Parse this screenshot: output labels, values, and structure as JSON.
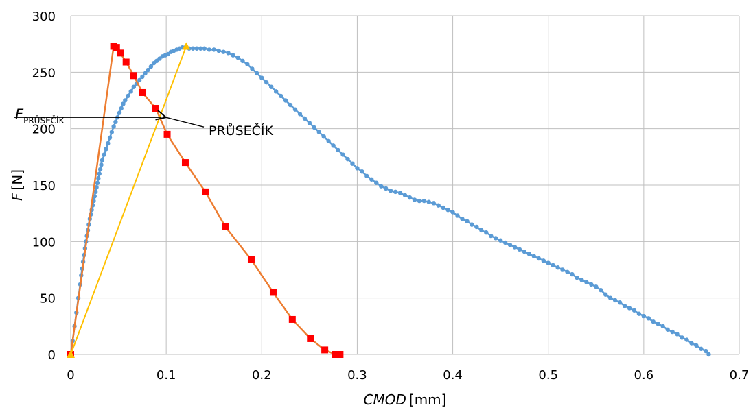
{
  "chart_data": {
    "type": "line",
    "xlabel": {
      "var": "CMOD",
      "unit": "[mm]"
    },
    "ylabel": {
      "var": "F",
      "unit": "[N]"
    },
    "xlim": [
      0,
      0.7
    ],
    "ylim": [
      0,
      300
    ],
    "xticks": [
      0,
      0.1,
      0.2,
      0.3,
      0.4,
      0.5,
      0.6,
      0.7
    ],
    "xtick_labels": [
      "0",
      "0.1",
      "0.2",
      "0.3",
      "0.4",
      "0.5",
      "0.6",
      "0.7"
    ],
    "yticks": [
      0,
      50,
      100,
      150,
      200,
      250,
      300
    ],
    "ytick_labels": [
      "0",
      "50",
      "100",
      "150",
      "200",
      "250",
      "300"
    ],
    "grid": true,
    "colors": {
      "blue": "#5B9BD5",
      "orange": "#ED7D31",
      "red": "#FF0000",
      "yellow": "#FFC000",
      "grid": "#BFBFBF"
    },
    "series": [
      {
        "marker": "circle",
        "color": "#5B9BD5",
        "points": [
          [
            0,
            0
          ],
          [
            0.002,
            12
          ],
          [
            0.004,
            25
          ],
          [
            0.006,
            37
          ],
          [
            0.008,
            50
          ],
          [
            0.01,
            62
          ],
          [
            0.011,
            70
          ],
          [
            0.012,
            76
          ],
          [
            0.013,
            82
          ],
          [
            0.014,
            88
          ],
          [
            0.015,
            94
          ],
          [
            0.016,
            100
          ],
          [
            0.017,
            105
          ],
          [
            0.018,
            110
          ],
          [
            0.019,
            115
          ],
          [
            0.02,
            120
          ],
          [
            0.021,
            124
          ],
          [
            0.022,
            128
          ],
          [
            0.023,
            132
          ],
          [
            0.024,
            136
          ],
          [
            0.025,
            140
          ],
          [
            0.026,
            144
          ],
          [
            0.027,
            148
          ],
          [
            0.028,
            152
          ],
          [
            0.029,
            156
          ],
          [
            0.03,
            160
          ],
          [
            0.031,
            164
          ],
          [
            0.032,
            168
          ],
          [
            0.033,
            172
          ],
          [
            0.035,
            177
          ],
          [
            0.037,
            182
          ],
          [
            0.039,
            187
          ],
          [
            0.041,
            192
          ],
          [
            0.043,
            197
          ],
          [
            0.045,
            202
          ],
          [
            0.047,
            206
          ],
          [
            0.049,
            210
          ],
          [
            0.051,
            214
          ],
          [
            0.053,
            218
          ],
          [
            0.055,
            222
          ],
          [
            0.057,
            225
          ],
          [
            0.06,
            229
          ],
          [
            0.063,
            233
          ],
          [
            0.066,
            237
          ],
          [
            0.069,
            240
          ],
          [
            0.072,
            243
          ],
          [
            0.075,
            246
          ],
          [
            0.078,
            249
          ],
          [
            0.081,
            252
          ],
          [
            0.084,
            255
          ],
          [
            0.087,
            258
          ],
          [
            0.09,
            260
          ],
          [
            0.093,
            262
          ],
          [
            0.096,
            264
          ],
          [
            0.099,
            265
          ],
          [
            0.102,
            266
          ],
          [
            0.105,
            268
          ],
          [
            0.108,
            269
          ],
          [
            0.111,
            270
          ],
          [
            0.114,
            271
          ],
          [
            0.117,
            272
          ],
          [
            0.12,
            272
          ],
          [
            0.124,
            271
          ],
          [
            0.128,
            271
          ],
          [
            0.132,
            271
          ],
          [
            0.136,
            271
          ],
          [
            0.14,
            271
          ],
          [
            0.145,
            270
          ],
          [
            0.15,
            270
          ],
          [
            0.155,
            269
          ],
          [
            0.16,
            268
          ],
          [
            0.165,
            267
          ],
          [
            0.17,
            265
          ],
          [
            0.175,
            263
          ],
          [
            0.18,
            260
          ],
          [
            0.185,
            257
          ],
          [
            0.19,
            253
          ],
          [
            0.195,
            249
          ],
          [
            0.2,
            245
          ],
          [
            0.205,
            241
          ],
          [
            0.21,
            237
          ],
          [
            0.215,
            233
          ],
          [
            0.22,
            229
          ],
          [
            0.225,
            225
          ],
          [
            0.23,
            221
          ],
          [
            0.235,
            217
          ],
          [
            0.24,
            213
          ],
          [
            0.245,
            209
          ],
          [
            0.25,
            205
          ],
          [
            0.255,
            201
          ],
          [
            0.26,
            197
          ],
          [
            0.265,
            193
          ],
          [
            0.27,
            189
          ],
          [
            0.275,
            185
          ],
          [
            0.28,
            181
          ],
          [
            0.285,
            177
          ],
          [
            0.29,
            173
          ],
          [
            0.295,
            169
          ],
          [
            0.3,
            165
          ],
          [
            0.305,
            162
          ],
          [
            0.31,
            158
          ],
          [
            0.315,
            155
          ],
          [
            0.32,
            152
          ],
          [
            0.325,
            149
          ],
          [
            0.33,
            147
          ],
          [
            0.335,
            145
          ],
          [
            0.34,
            144
          ],
          [
            0.345,
            143
          ],
          [
            0.35,
            141
          ],
          [
            0.355,
            139
          ],
          [
            0.36,
            137
          ],
          [
            0.365,
            136
          ],
          [
            0.37,
            136
          ],
          [
            0.375,
            135
          ],
          [
            0.38,
            134
          ],
          [
            0.385,
            132
          ],
          [
            0.39,
            130
          ],
          [
            0.395,
            128
          ],
          [
            0.4,
            126
          ],
          [
            0.405,
            123
          ],
          [
            0.41,
            120
          ],
          [
            0.415,
            118
          ],
          [
            0.42,
            115
          ],
          [
            0.425,
            113
          ],
          [
            0.43,
            110
          ],
          [
            0.435,
            108
          ],
          [
            0.44,
            105
          ],
          [
            0.445,
            103
          ],
          [
            0.45,
            101
          ],
          [
            0.455,
            99
          ],
          [
            0.46,
            97
          ],
          [
            0.465,
            95
          ],
          [
            0.47,
            93
          ],
          [
            0.475,
            91
          ],
          [
            0.48,
            89
          ],
          [
            0.485,
            87
          ],
          [
            0.49,
            85
          ],
          [
            0.495,
            83
          ],
          [
            0.5,
            81
          ],
          [
            0.505,
            79
          ],
          [
            0.51,
            77
          ],
          [
            0.515,
            75
          ],
          [
            0.52,
            73
          ],
          [
            0.525,
            71
          ],
          [
            0.53,
            68
          ],
          [
            0.535,
            66
          ],
          [
            0.54,
            64
          ],
          [
            0.545,
            62
          ],
          [
            0.55,
            60
          ],
          [
            0.555,
            57
          ],
          [
            0.56,
            53
          ],
          [
            0.565,
            50
          ],
          [
            0.57,
            48
          ],
          [
            0.575,
            46
          ],
          [
            0.58,
            43
          ],
          [
            0.585,
            41
          ],
          [
            0.59,
            39
          ],
          [
            0.595,
            36
          ],
          [
            0.6,
            34
          ],
          [
            0.605,
            32
          ],
          [
            0.61,
            29
          ],
          [
            0.615,
            27
          ],
          [
            0.62,
            25
          ],
          [
            0.625,
            22
          ],
          [
            0.63,
            20
          ],
          [
            0.635,
            18
          ],
          [
            0.64,
            15
          ],
          [
            0.645,
            13
          ],
          [
            0.65,
            10
          ],
          [
            0.655,
            8
          ],
          [
            0.66,
            5
          ],
          [
            0.665,
            3
          ],
          [
            0.668,
            0
          ]
        ]
      },
      {
        "marker": "square",
        "color": "#ED7D31",
        "marker_color": "#FF0000",
        "points": [
          [
            0,
            0
          ],
          [
            0.045,
            273
          ],
          [
            0.048,
            272
          ],
          [
            0.052,
            267
          ],
          [
            0.058,
            259
          ],
          [
            0.066,
            247
          ],
          [
            0.075,
            232
          ],
          [
            0.089,
            218
          ],
          [
            0.101,
            195
          ],
          [
            0.12,
            170
          ],
          [
            0.141,
            144
          ],
          [
            0.162,
            113
          ],
          [
            0.189,
            84
          ],
          [
            0.212,
            55
          ],
          [
            0.232,
            31
          ],
          [
            0.251,
            14
          ],
          [
            0.266,
            4
          ],
          [
            0.277,
            0
          ],
          [
            0.282,
            0
          ]
        ]
      },
      {
        "marker": "triangle",
        "color": "#FFC000",
        "points": [
          [
            0,
            0
          ],
          [
            0.121,
            273
          ]
        ]
      }
    ],
    "annotations": [
      {
        "type": "hline",
        "label_var": "F",
        "label_sub": "PRŮSEČÍK",
        "y": 210,
        "x_to": 0.095
      },
      {
        "type": "arrow",
        "text": "PRŮSEČÍK",
        "x": 0.094,
        "y": 210
      }
    ]
  }
}
